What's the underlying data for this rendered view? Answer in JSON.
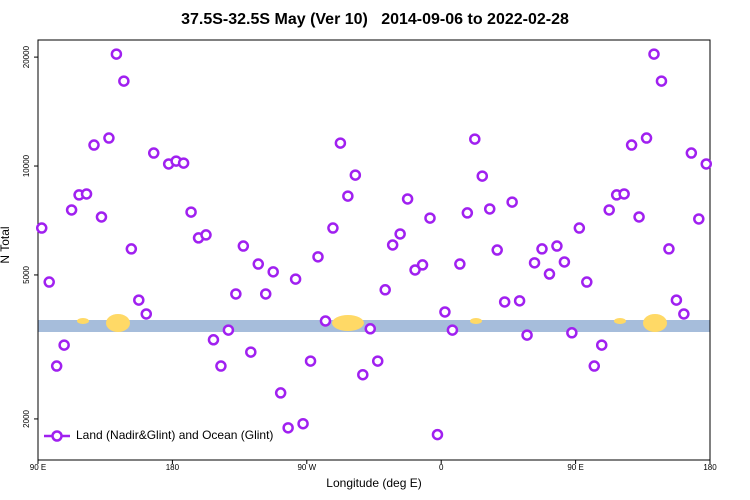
{
  "chart_data": {
    "type": "scatter",
    "title": "37.5S-32.5S May (Ver 10)   2014-09-06 to 2022-02-28",
    "x_label": "Longitude (deg E)",
    "y_label": "N Total",
    "x": [
      92.5,
      97.5,
      102.5,
      107.5,
      112.5,
      117.5,
      122.5,
      127.5,
      132.5,
      137.5,
      142.5,
      147.5,
      152.5,
      157.5,
      162.5,
      167.5,
      177.5,
      182.5,
      187.5,
      192.5,
      197.5,
      202.5,
      207.5,
      212.5,
      217.5,
      222.5,
      227.5,
      232.5,
      237.5,
      242.5,
      247.5,
      252.5,
      257.5,
      262.5,
      267.5,
      272.5,
      277.5,
      282.5,
      287.5,
      292.5,
      297.5,
      302.5,
      307.5,
      312.5,
      317.5,
      322.5,
      327.5,
      332.5,
      337.5,
      342.5,
      347.5,
      352.5,
      357.5,
      362.5,
      367.5,
      372.5,
      377.5,
      382.5,
      387.5,
      392.5,
      397.5,
      402.5,
      407.5,
      412.5,
      417.5,
      422.5,
      427.5,
      432.5,
      437.5,
      442.5,
      447.5,
      452.5,
      457.5,
      462.5,
      467.5,
      472.5,
      477.5,
      482.5,
      487.5,
      492.5,
      497.5,
      502.5,
      507.5,
      512.5,
      517.5,
      522.5,
      527.5,
      532.5,
      537.5
    ],
    "series": [
      {
        "name": "Land (Nadir&Glint) and Ocean (Glint)",
        "color": "#a020f0",
        "values": [
          6740,
          4780,
          2800,
          3200,
          7560,
          8320,
          8370,
          11430,
          7230,
          11950,
          20390,
          17170,
          5900,
          4260,
          3900,
          10860,
          10130,
          10320,
          10190,
          7460,
          6330,
          6450,
          3310,
          2800,
          3520,
          4430,
          6010,
          3060,
          5360,
          4430,
          5100,
          2360,
          1890,
          4870,
          1940,
          2890,
          5610,
          3730,
          6740,
          11570,
          8260,
          9440,
          2650,
          3550,
          2890,
          4550,
          6050,
          6490,
          8110,
          5160,
          5330,
          7180,
          1810,
          3950,
          3520,
          5360,
          7420,
          11870,
          9380,
          7610,
          5860,
          4210,
          7950,
          4240,
          3410,
          5400,
          5900,
          5030,
          6010,
          5430,
          3460,
          6740,
          4780,
          2800,
          3200,
          7560,
          8320,
          8370,
          11430,
          7230,
          11950,
          20390,
          17170,
          5900,
          4260,
          3900,
          10860,
          7140,
          10130
        ]
      }
    ],
    "xlim": [
      90,
      540
    ],
    "ylim": [
      1540,
      22300
    ],
    "xticks": [
      {
        "value": 90,
        "label": "90 E"
      },
      180,
      {
        "value": 270,
        "label": "90 W"
      },
      {
        "value": 360,
        "label": "0"
      },
      {
        "value": 450,
        "label": "90 E"
      },
      {
        "value": 540,
        "label": "180"
      }
    ],
    "yticks": [
      2000,
      5000,
      10000,
      20000
    ],
    "log_y": true,
    "legend": "bottom-left"
  }
}
